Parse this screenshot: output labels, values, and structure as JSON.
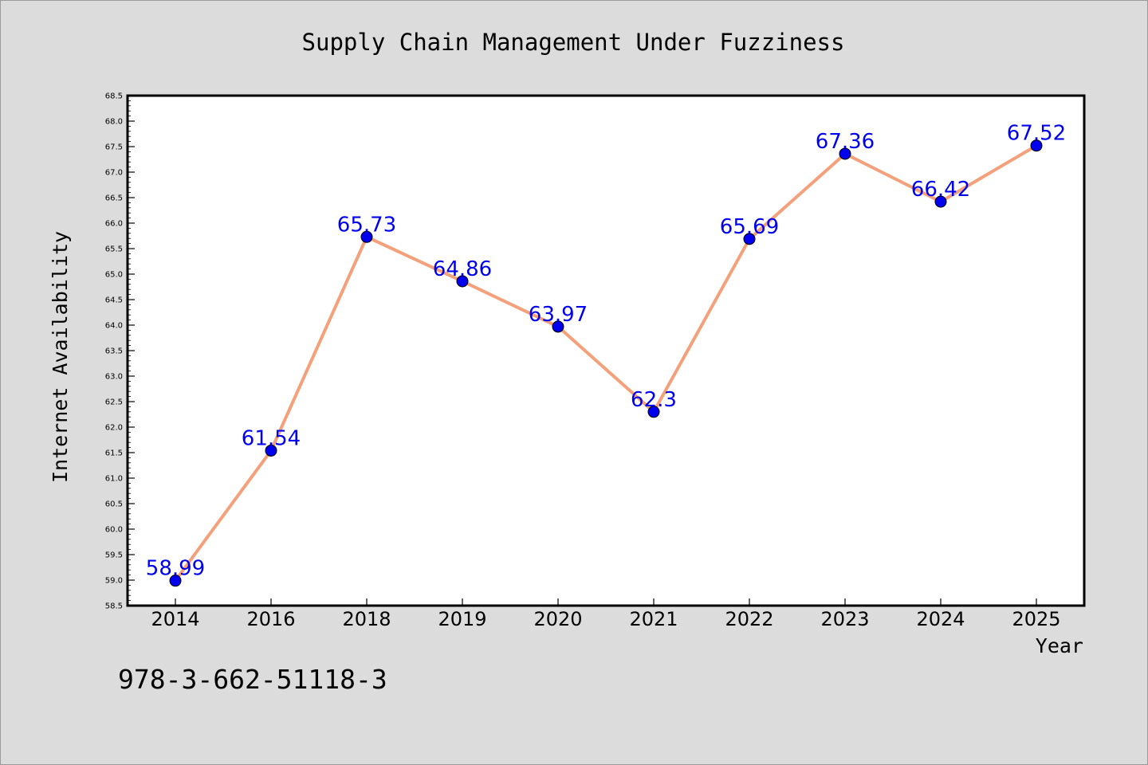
{
  "chart_data": {
    "type": "line",
    "title": "Supply Chain Management Under Fuzziness",
    "xlabel": "Year",
    "ylabel": "Internet Availability",
    "categories": [
      "2014",
      "2016",
      "2018",
      "2019",
      "2020",
      "2021",
      "2022",
      "2023",
      "2024",
      "2025"
    ],
    "series": [
      {
        "values": [
          58.99,
          61.54,
          65.73,
          64.86,
          63.97,
          62.3,
          65.69,
          67.36,
          66.42,
          67.52
        ]
      }
    ],
    "data_labels": [
      "58.99",
      "61.54",
      "65.73",
      "64.86",
      "63.97",
      "62.3",
      "65.69",
      "67.36",
      "66.42",
      "67.52"
    ],
    "ylim": [
      58.5,
      68.5
    ],
    "y_ticks": [
      "58.5",
      "59.0",
      "59.5",
      "60.0",
      "60.5",
      "61.0",
      "61.5",
      "62.0",
      "62.5",
      "63.0",
      "63.5",
      "64.0",
      "64.5",
      "65.0",
      "65.5",
      "66.0",
      "66.5",
      "67.0",
      "67.5",
      "68.0",
      "68.5"
    ],
    "grid": false,
    "line_color": "#f4a07a",
    "marker_color": "#0000ee",
    "label_color": "#0000ee",
    "background_color": "#dcdcdc",
    "plot_background": "#ffffff"
  },
  "footer": {
    "isbn": "978-3-662-51118-3"
  }
}
